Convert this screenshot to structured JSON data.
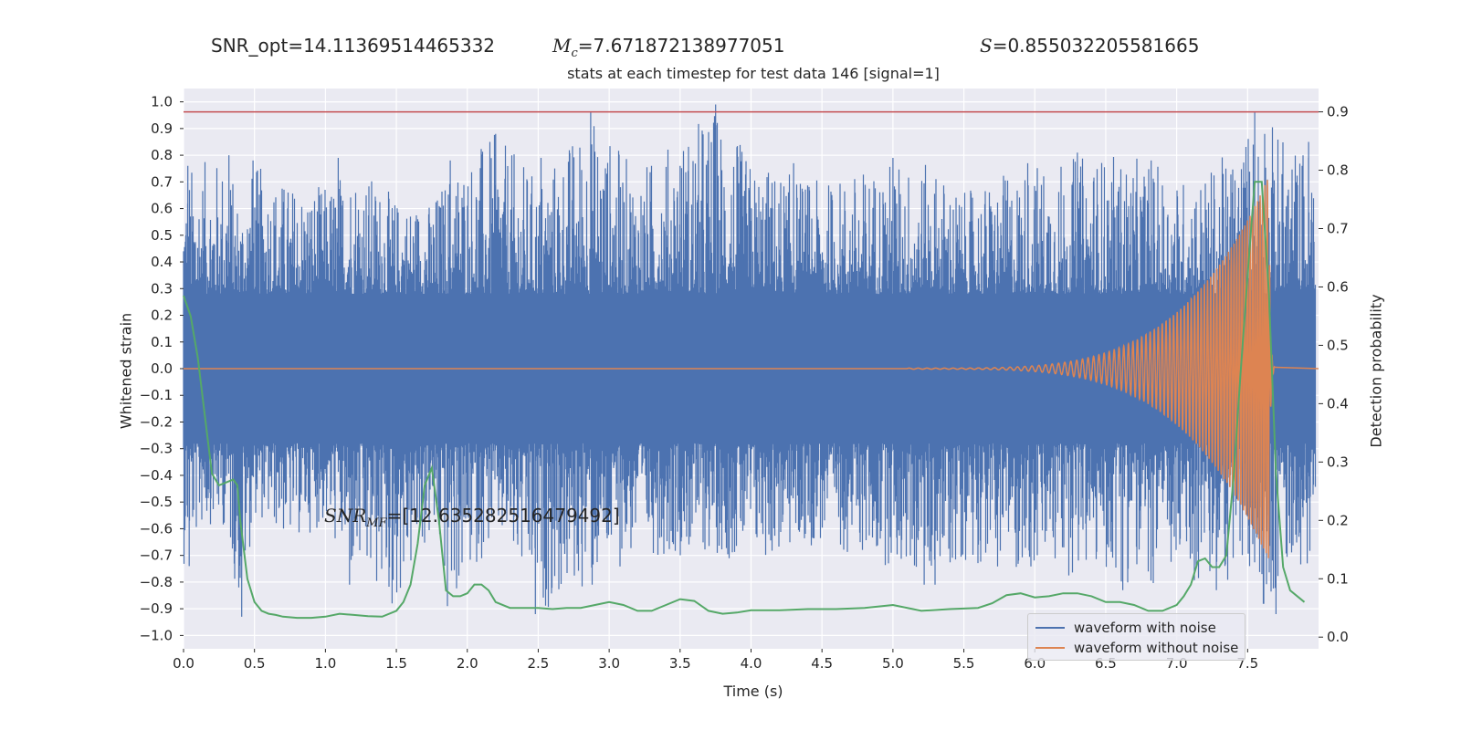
{
  "header": {
    "snr_opt": "SNR_opt=14.11369514465332",
    "mc_symbol": "M",
    "mc_sub": "c",
    "mc_value": "=7.671872138977051",
    "s_symbol": "S",
    "s_value": "=0.855032205581665",
    "subtitle": "stats at each timestep for test data 146 [signal=1]"
  },
  "annotation": {
    "snr_symbol": "SNR",
    "snr_sub": "MF",
    "snr_value": "=[12.635282516479492]"
  },
  "chart_data": {
    "type": "line",
    "xlabel": "Time (s)",
    "ylabel_left": "Whitened strain",
    "ylabel_right": "Detection probability",
    "xlim": [
      0.0,
      8.0
    ],
    "ylim_left": [
      -1.05,
      1.05
    ],
    "ylim_right": [
      -0.02,
      0.94
    ],
    "x_ticks": [
      "0.0",
      "0.5",
      "1.0",
      "1.5",
      "2.0",
      "2.5",
      "3.0",
      "3.5",
      "4.0",
      "4.5",
      "5.0",
      "5.5",
      "6.0",
      "6.5",
      "7.0",
      "7.5"
    ],
    "y_ticks_left": [
      "1.0",
      "0.9",
      "0.8",
      "0.7",
      "0.6",
      "0.5",
      "0.4",
      "0.3",
      "0.2",
      "0.1",
      "0.0",
      "−0.1",
      "−0.2",
      "−0.3",
      "−0.4",
      "−0.5",
      "−0.6",
      "−0.7",
      "−0.8",
      "−0.9",
      "−1.0"
    ],
    "y_ticks_right": [
      "0.9",
      "0.8",
      "0.7",
      "0.6",
      "0.5",
      "0.4",
      "0.3",
      "0.2",
      "0.1",
      "0.0"
    ],
    "threshold": {
      "value": 0.9,
      "axis": "right",
      "color": "#c44e52"
    },
    "grid": true,
    "legend_position": "lower-right",
    "series": [
      {
        "name": "waveform with noise",
        "axis": "left",
        "color": "#4c72b0",
        "envelope": [
          {
            "x": 0.0,
            "max": 0.76,
            "min": -0.74
          },
          {
            "x": 0.15,
            "max": 0.78,
            "min": -0.58
          },
          {
            "x": 0.3,
            "max": 0.8,
            "min": -0.6
          },
          {
            "x": 0.4,
            "max": 0.63,
            "min": -0.93
          },
          {
            "x": 0.5,
            "max": 0.77,
            "min": -0.55
          },
          {
            "x": 0.75,
            "max": 0.7,
            "min": -0.65
          },
          {
            "x": 1.0,
            "max": 0.69,
            "min": -0.59
          },
          {
            "x": 1.2,
            "max": 0.79,
            "min": -0.82
          },
          {
            "x": 1.5,
            "max": 0.64,
            "min": -0.89
          },
          {
            "x": 1.75,
            "max": 0.63,
            "min": -0.64
          },
          {
            "x": 1.9,
            "max": 0.78,
            "min": -0.89
          },
          {
            "x": 2.2,
            "max": 0.88,
            "min": -0.63
          },
          {
            "x": 2.5,
            "max": 0.72,
            "min": -0.92
          },
          {
            "x": 2.87,
            "max": 0.96,
            "min": -0.82
          },
          {
            "x": 3.2,
            "max": 0.75,
            "min": -0.7
          },
          {
            "x": 3.75,
            "max": 0.99,
            "min": -0.7
          },
          {
            "x": 4.0,
            "max": 0.78,
            "min": -0.74
          },
          {
            "x": 4.5,
            "max": 0.7,
            "min": -0.66
          },
          {
            "x": 5.0,
            "max": 0.79,
            "min": -0.75
          },
          {
            "x": 5.3,
            "max": 0.76,
            "min": -0.82
          },
          {
            "x": 5.5,
            "max": 0.66,
            "min": -0.72
          },
          {
            "x": 6.0,
            "max": 0.78,
            "min": -0.78
          },
          {
            "x": 6.5,
            "max": 0.81,
            "min": -0.78
          },
          {
            "x": 6.8,
            "max": 0.78,
            "min": -0.83
          },
          {
            "x": 7.0,
            "max": 0.72,
            "min": -0.79
          },
          {
            "x": 7.2,
            "max": 0.74,
            "min": -0.83
          },
          {
            "x": 7.4,
            "max": 0.83,
            "min": -0.8
          },
          {
            "x": 7.55,
            "max": 0.96,
            "min": -0.83
          },
          {
            "x": 7.65,
            "max": 0.94,
            "min": -0.92
          },
          {
            "x": 7.8,
            "max": 0.85,
            "min": -0.73
          },
          {
            "x": 7.97,
            "max": 0.85,
            "min": -0.74
          }
        ],
        "spikes": [
          {
            "x": 0.03,
            "y": 0.76
          },
          {
            "x": 0.04,
            "y": -0.74
          },
          {
            "x": 0.32,
            "y": 0.8
          },
          {
            "x": 0.41,
            "y": -0.93
          },
          {
            "x": 0.49,
            "y": 0.78
          },
          {
            "x": 1.09,
            "y": 0.79
          },
          {
            "x": 1.17,
            "y": -0.81
          },
          {
            "x": 1.47,
            "y": -0.88
          },
          {
            "x": 1.88,
            "y": 0.78
          },
          {
            "x": 1.86,
            "y": -0.89
          },
          {
            "x": 2.2,
            "y": 0.88
          },
          {
            "x": 2.48,
            "y": -0.92
          },
          {
            "x": 2.52,
            "y": 0.79
          },
          {
            "x": 2.87,
            "y": 0.96
          },
          {
            "x": 2.88,
            "y": -0.81
          },
          {
            "x": 3.75,
            "y": 0.99
          },
          {
            "x": 3.5,
            "y": 0.76
          },
          {
            "x": 4.3,
            "y": 0.77
          },
          {
            "x": 5.0,
            "y": 0.79
          },
          {
            "x": 5.22,
            "y": -0.81
          },
          {
            "x": 5.95,
            "y": 0.77
          },
          {
            "x": 6.3,
            "y": 0.81
          },
          {
            "x": 6.62,
            "y": -0.83
          },
          {
            "x": 6.82,
            "y": 0.78
          },
          {
            "x": 6.8,
            "y": -0.76
          },
          {
            "x": 7.28,
            "y": -0.83
          },
          {
            "x": 7.55,
            "y": 0.96
          },
          {
            "x": 7.62,
            "y": 0.88
          },
          {
            "x": 7.7,
            "y": -0.92
          },
          {
            "x": 7.93,
            "y": 0.85
          },
          {
            "x": 7.92,
            "y": -0.73
          }
        ]
      },
      {
        "name": "waveform without noise",
        "axis": "left",
        "color": "#dd8452",
        "chirp": {
          "start": 5.1,
          "merger": 7.65,
          "amp_start": 0.002,
          "amp_merger": 0.72,
          "freq_start": 16,
          "freq_merger": 60
        }
      },
      {
        "axis": "right",
        "color": "#55a868",
        "x": [
          0.0,
          0.05,
          0.1,
          0.15,
          0.2,
          0.25,
          0.3,
          0.35,
          0.38,
          0.4,
          0.45,
          0.5,
          0.55,
          0.6,
          0.65,
          0.7,
          0.8,
          0.9,
          1.0,
          1.1,
          1.2,
          1.3,
          1.4,
          1.5,
          1.55,
          1.6,
          1.65,
          1.7,
          1.75,
          1.8,
          1.85,
          1.9,
          1.95,
          2.0,
          2.05,
          2.1,
          2.15,
          2.2,
          2.3,
          2.4,
          2.5,
          2.6,
          2.7,
          2.8,
          2.9,
          3.0,
          3.1,
          3.2,
          3.3,
          3.4,
          3.5,
          3.6,
          3.7,
          3.8,
          3.9,
          4.0,
          4.2,
          4.4,
          4.6,
          4.8,
          5.0,
          5.2,
          5.4,
          5.6,
          5.7,
          5.8,
          5.9,
          6.0,
          6.1,
          6.2,
          6.3,
          6.4,
          6.5,
          6.6,
          6.7,
          6.8,
          6.9,
          7.0,
          7.05,
          7.1,
          7.15,
          7.2,
          7.25,
          7.3,
          7.35,
          7.4,
          7.45,
          7.5,
          7.55,
          7.6,
          7.65,
          7.7,
          7.75,
          7.8,
          7.9
        ],
        "y": [
          0.585,
          0.55,
          0.48,
          0.38,
          0.28,
          0.26,
          0.265,
          0.27,
          0.26,
          0.2,
          0.1,
          0.06,
          0.045,
          0.04,
          0.038,
          0.035,
          0.033,
          0.033,
          0.035,
          0.04,
          0.038,
          0.036,
          0.035,
          0.045,
          0.06,
          0.09,
          0.16,
          0.26,
          0.29,
          0.2,
          0.08,
          0.07,
          0.07,
          0.075,
          0.09,
          0.09,
          0.08,
          0.06,
          0.05,
          0.05,
          0.05,
          0.048,
          0.05,
          0.05,
          0.055,
          0.06,
          0.055,
          0.045,
          0.045,
          0.055,
          0.065,
          0.062,
          0.045,
          0.04,
          0.042,
          0.046,
          0.046,
          0.048,
          0.048,
          0.05,
          0.055,
          0.045,
          0.048,
          0.05,
          0.058,
          0.072,
          0.075,
          0.068,
          0.07,
          0.075,
          0.075,
          0.07,
          0.06,
          0.06,
          0.055,
          0.045,
          0.045,
          0.055,
          0.07,
          0.09,
          0.13,
          0.135,
          0.12,
          0.12,
          0.14,
          0.27,
          0.45,
          0.62,
          0.78,
          0.78,
          0.59,
          0.28,
          0.12,
          0.08,
          0.06
        ]
      }
    ]
  }
}
